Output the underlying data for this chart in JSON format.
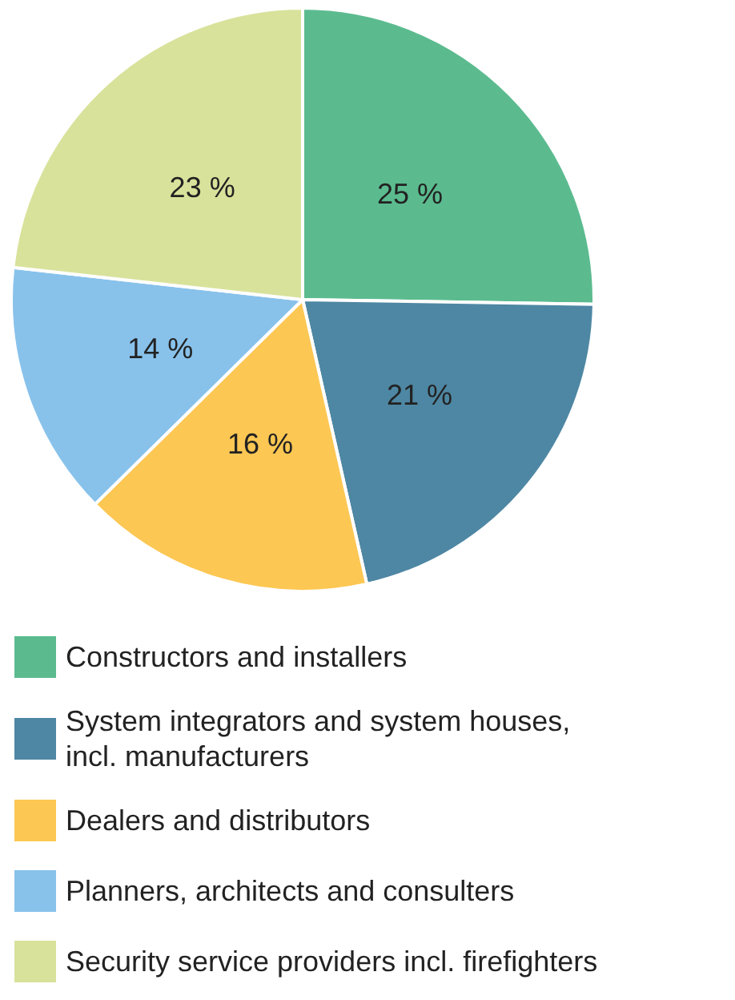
{
  "chart_data": {
    "type": "pie",
    "categories": [
      "Constructors and installers",
      "System integrators and system houses, incl. manufacturers",
      "Dealers and distributors",
      "Planners, architects and consulters",
      "Security service providers incl. firefighters"
    ],
    "values": [
      25,
      21,
      16,
      14,
      23
    ],
    "colors": [
      "#5bbb8f",
      "#4e87a3",
      "#fcc753",
      "#88c2eb",
      "#d9e29b"
    ],
    "value_labels": [
      "25 %",
      "21 %",
      "16 %",
      "14 %",
      "23 %"
    ],
    "legend": "bottom"
  }
}
